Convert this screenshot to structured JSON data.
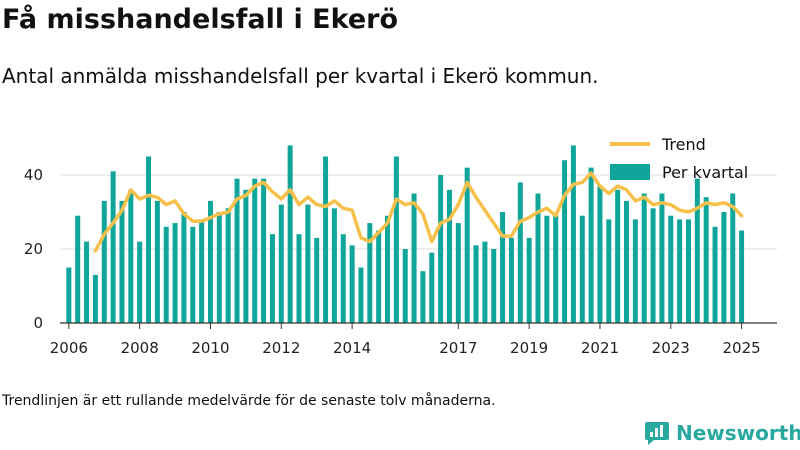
{
  "header": {
    "title": "Få misshandelsfall i Ekerö",
    "subtitle": "Antal anmälda misshandelsfall per kvartal i Ekerö kommun."
  },
  "footnote": "Trendlinjen är ett rullande medelvärde för de senaste tolv månaderna.",
  "brand": {
    "name": "Newsworthy",
    "color": "#29a8a0"
  },
  "colors": {
    "bars": "#0fa59a",
    "trend": "#f7c04a",
    "grid": "#dddddd",
    "axis": "#333333"
  },
  "chart_data": {
    "type": "bar",
    "title": "",
    "xlabel": "",
    "ylabel": "",
    "ylim": [
      0,
      50
    ],
    "xlim": [
      2005.75,
      2026.0
    ],
    "y_ticks": [
      0,
      20,
      40
    ],
    "x_ticks": [
      2006,
      2008,
      2010,
      2012,
      2014,
      2017,
      2019,
      2021,
      2023,
      2025
    ],
    "grid": true,
    "legend": {
      "position": "top-right",
      "entries": [
        "Trend",
        "Per kvartal"
      ]
    },
    "series": [
      {
        "name": "Per kvartal",
        "type": "bar",
        "x": [
          2006.0,
          2006.25,
          2006.5,
          2006.75,
          2007.0,
          2007.25,
          2007.5,
          2007.75,
          2008.0,
          2008.25,
          2008.5,
          2008.75,
          2009.0,
          2009.25,
          2009.5,
          2009.75,
          2010.0,
          2010.25,
          2010.5,
          2010.75,
          2011.0,
          2011.25,
          2011.5,
          2011.75,
          2012.0,
          2012.25,
          2012.5,
          2012.75,
          2013.0,
          2013.25,
          2013.5,
          2013.75,
          2014.0,
          2014.25,
          2014.5,
          2014.75,
          2015.0,
          2015.25,
          2015.5,
          2015.75,
          2016.0,
          2016.25,
          2016.5,
          2016.75,
          2017.0,
          2017.25,
          2017.5,
          2017.75,
          2018.0,
          2018.25,
          2018.5,
          2018.75,
          2019.0,
          2019.25,
          2019.5,
          2019.75,
          2020.0,
          2020.25,
          2020.5,
          2020.75,
          2021.0,
          2021.25,
          2021.5,
          2021.75,
          2022.0,
          2022.25,
          2022.5,
          2022.75,
          2023.0,
          2023.25,
          2023.5,
          2023.75,
          2024.0,
          2024.25,
          2024.5,
          2024.75,
          2025.0
        ],
        "values": [
          15,
          29,
          22,
          13,
          33,
          41,
          33,
          36,
          22,
          45,
          33,
          26,
          27,
          30,
          26,
          28,
          33,
          30,
          31,
          39,
          36,
          39,
          39,
          24,
          32,
          48,
          24,
          32,
          23,
          45,
          31,
          24,
          21,
          15,
          27,
          25,
          29,
          45,
          20,
          35,
          14,
          19,
          40,
          36,
          27,
          42,
          21,
          22,
          20,
          30,
          23,
          38,
          23,
          35,
          29,
          29,
          44,
          48,
          29,
          42,
          37,
          28,
          36,
          33,
          28,
          35,
          31,
          35,
          29,
          28,
          28,
          39,
          34,
          26,
          30,
          35,
          25
        ]
      },
      {
        "name": "Trend",
        "type": "line",
        "x": [
          2006.75,
          2007.0,
          2007.25,
          2007.5,
          2007.75,
          2008.0,
          2008.25,
          2008.5,
          2008.75,
          2009.0,
          2009.25,
          2009.5,
          2009.75,
          2010.0,
          2010.25,
          2010.5,
          2010.75,
          2011.0,
          2011.25,
          2011.5,
          2011.75,
          2012.0,
          2012.25,
          2012.5,
          2012.75,
          2013.0,
          2013.25,
          2013.5,
          2013.75,
          2014.0,
          2014.25,
          2014.5,
          2014.75,
          2015.0,
          2015.25,
          2015.5,
          2015.75,
          2016.0,
          2016.25,
          2016.5,
          2016.75,
          2017.0,
          2017.25,
          2017.5,
          2017.75,
          2018.0,
          2018.25,
          2018.5,
          2018.75,
          2019.0,
          2019.25,
          2019.5,
          2019.75,
          2020.0,
          2020.25,
          2020.5,
          2020.75,
          2021.0,
          2021.25,
          2021.5,
          2021.75,
          2022.0,
          2022.25,
          2022.5,
          2022.75,
          2023.0,
          2023.25,
          2023.5,
          2023.75,
          2024.0,
          2024.25,
          2024.5,
          2024.75,
          2025.0
        ],
        "values": [
          19.5,
          24,
          27,
          30.5,
          36,
          33.5,
          34.5,
          34,
          32,
          33,
          29.5,
          27.5,
          27.5,
          28.5,
          29.5,
          30,
          33.5,
          34.5,
          37,
          38,
          35.5,
          33.5,
          36,
          32,
          34,
          32,
          31.5,
          33,
          31,
          30.5,
          23,
          22,
          24.5,
          27,
          33.5,
          32,
          32.5,
          29.5,
          22,
          27,
          28,
          32,
          38,
          34,
          30.5,
          27,
          23.5,
          23.5,
          27.5,
          28.5,
          30,
          31,
          29,
          34.5,
          37.5,
          38,
          40.5,
          37,
          35,
          37,
          36,
          33,
          34,
          32,
          32.5,
          32,
          30.5,
          30,
          31,
          32.5,
          32,
          32.5,
          31.5,
          29
        ]
      }
    ]
  }
}
